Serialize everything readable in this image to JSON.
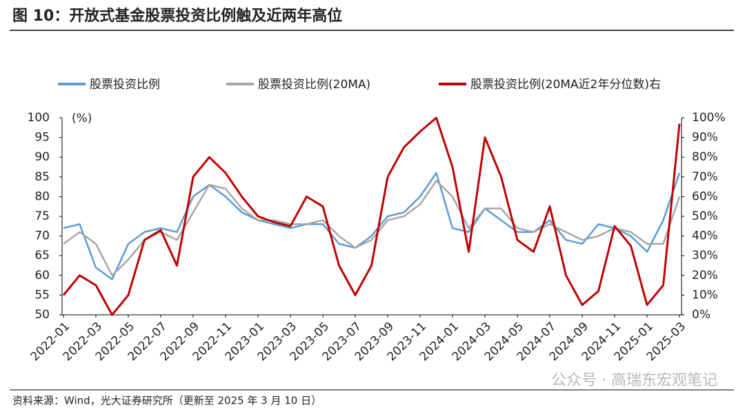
{
  "title": "图 10：开放式基金股票投资比例触及近两年高位",
  "chart_data": {
    "type": "line",
    "y_unit_label": "(%)",
    "categories": [
      "2022-01",
      null,
      "2022-03",
      null,
      "2022-05",
      null,
      "2022-07",
      null,
      "2022-09",
      null,
      "2022-11",
      null,
      "2023-01",
      null,
      "2023-03",
      null,
      "2023-05",
      null,
      "2023-07",
      null,
      "2023-09",
      null,
      "2023-11",
      null,
      "2024-01",
      null,
      "2024-03",
      null,
      "2024-05",
      null,
      "2024-07",
      null,
      "2024-09",
      null,
      "2024-11",
      null,
      "2025-01",
      null,
      "2025-03"
    ],
    "series": [
      {
        "name": "股票投资比例",
        "color": "#5b9bd5",
        "values": [
          72,
          73,
          62,
          59,
          68,
          71,
          72,
          71,
          80,
          83,
          80,
          76,
          74,
          73,
          72,
          73,
          73,
          68,
          67,
          70,
          75,
          76,
          80,
          86,
          72,
          71,
          77,
          74,
          71,
          71,
          74,
          69,
          68,
          73,
          72,
          70,
          66,
          74,
          86
        ]
      },
      {
        "name": "股票投资比例(20MA)",
        "color": "#a6a6a6",
        "values": [
          68,
          71,
          68,
          60,
          64,
          69,
          71,
          69,
          76,
          83,
          82,
          77,
          74,
          74,
          73,
          73,
          74,
          70,
          67,
          69,
          74,
          75,
          78,
          84,
          80,
          72,
          77,
          77,
          72,
          71,
          73,
          71,
          69,
          70,
          72,
          71,
          68,
          68,
          80
        ]
      },
      {
        "name": "股票投资比例(20MA近2年分位数)右",
        "color": "#c00000",
        "axis": "y2",
        "values": [
          10,
          20,
          15,
          0,
          10,
          38,
          43,
          25,
          70,
          80,
          72,
          60,
          50,
          47,
          45,
          60,
          55,
          25,
          10,
          25,
          70,
          85,
          93,
          100,
          75,
          32,
          90,
          70,
          38,
          32,
          55,
          20,
          5,
          12,
          45,
          35,
          5,
          15,
          97
        ]
      }
    ],
    "ylim": [
      50,
      100
    ],
    "yticks": [
      50,
      55,
      60,
      65,
      70,
      75,
      80,
      85,
      90,
      95,
      100
    ],
    "y2lim": [
      0,
      100
    ],
    "y2ticks": [
      {
        "value": 0,
        "label": "0%"
      },
      {
        "value": 10,
        "label": "10%"
      },
      {
        "value": 20,
        "label": "20%"
      },
      {
        "value": 30,
        "label": "30%"
      },
      {
        "value": 40,
        "label": "40%"
      },
      {
        "value": 50,
        "label": "50%"
      },
      {
        "value": 60,
        "label": "60%"
      },
      {
        "value": 70,
        "label": "70%"
      },
      {
        "value": 80,
        "label": "80%"
      },
      {
        "value": 90,
        "label": "90%"
      },
      {
        "value": 100,
        "label": "100%"
      }
    ],
    "legend": "top"
  },
  "source": "资料来源：Wind，光大证券研究所（更新至 2025 年 3 月 10 日）",
  "watermark": "公众号 · 高瑞东宏观笔记"
}
